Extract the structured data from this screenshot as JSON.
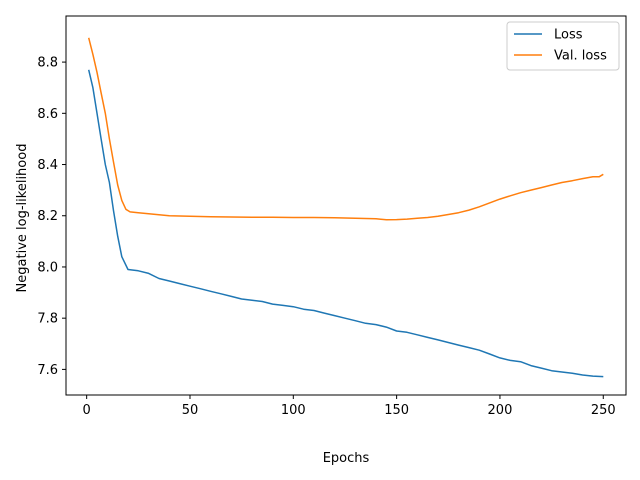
{
  "chart_data": {
    "type": "line",
    "xlabel": "Epochs",
    "ylabel": "Negative log-likelihood",
    "xlim": [
      -10,
      261
    ],
    "ylim": [
      7.5,
      8.98
    ],
    "xticks": [
      "0",
      "50",
      "100",
      "150",
      "200",
      "250"
    ],
    "yticks": [
      "7.6",
      "7.8",
      "8.0",
      "8.2",
      "8.4",
      "8.6",
      "8.8"
    ],
    "grid": false,
    "legend_position": "top-right",
    "series": [
      {
        "name": "Loss",
        "color": "#1f77b4",
        "x": [
          1,
          3,
          5,
          7,
          9,
          11,
          13,
          15,
          17,
          20,
          25,
          30,
          35,
          40,
          45,
          50,
          55,
          60,
          65,
          70,
          75,
          80,
          85,
          90,
          95,
          100,
          105,
          110,
          115,
          120,
          125,
          130,
          135,
          140,
          145,
          150,
          155,
          160,
          165,
          170,
          175,
          180,
          185,
          190,
          195,
          200,
          205,
          210,
          215,
          220,
          225,
          230,
          235,
          240,
          245,
          250
        ],
        "y": [
          8.77,
          8.7,
          8.6,
          8.5,
          8.4,
          8.33,
          8.22,
          8.12,
          8.04,
          7.99,
          7.985,
          7.975,
          7.955,
          7.945,
          7.935,
          7.925,
          7.915,
          7.905,
          7.895,
          7.885,
          7.875,
          7.87,
          7.865,
          7.855,
          7.85,
          7.845,
          7.835,
          7.83,
          7.82,
          7.81,
          7.8,
          7.79,
          7.78,
          7.775,
          7.765,
          7.75,
          7.745,
          7.735,
          7.725,
          7.715,
          7.705,
          7.695,
          7.685,
          7.675,
          7.66,
          7.645,
          7.635,
          7.63,
          7.615,
          7.605,
          7.595,
          7.59,
          7.585,
          7.578,
          7.574,
          7.572
        ]
      },
      {
        "name": "Val. loss",
        "color": "#ff7f0e",
        "x": [
          1,
          3,
          5,
          7,
          9,
          11,
          13,
          15,
          17,
          19,
          21,
          25,
          30,
          35,
          40,
          50,
          60,
          70,
          80,
          90,
          100,
          110,
          120,
          130,
          140,
          145,
          150,
          155,
          160,
          165,
          170,
          175,
          180,
          185,
          190,
          195,
          200,
          205,
          210,
          215,
          220,
          225,
          230,
          235,
          240,
          245,
          248,
          250
        ],
        "y": [
          8.895,
          8.83,
          8.76,
          8.68,
          8.6,
          8.5,
          8.41,
          8.32,
          8.26,
          8.225,
          8.215,
          8.212,
          8.208,
          8.204,
          8.2,
          8.198,
          8.196,
          8.195,
          8.194,
          8.194,
          8.193,
          8.193,
          8.192,
          8.19,
          8.188,
          8.184,
          8.185,
          8.187,
          8.19,
          8.193,
          8.198,
          8.205,
          8.212,
          8.222,
          8.235,
          8.25,
          8.265,
          8.278,
          8.29,
          8.3,
          8.31,
          8.32,
          8.33,
          8.337,
          8.345,
          8.352,
          8.352,
          8.362
        ]
      }
    ]
  }
}
